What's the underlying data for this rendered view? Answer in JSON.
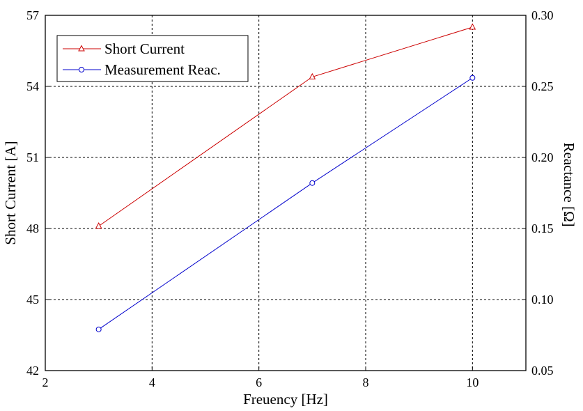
{
  "chart_data": {
    "type": "line",
    "x_axis": {
      "label": "Freuency [Hz]",
      "range": [
        2,
        11
      ],
      "ticks": [
        2,
        4,
        6,
        8,
        10
      ],
      "tick_labels": [
        "2",
        "4",
        "6",
        "8",
        "10"
      ]
    },
    "y_axis_left": {
      "label": "Short Current [A]",
      "range": [
        42,
        57
      ],
      "ticks": [
        42,
        45,
        48,
        51,
        54,
        57
      ],
      "tick_labels": [
        "42",
        "45",
        "48",
        "51",
        "54",
        "57"
      ]
    },
    "y_axis_right": {
      "label": "Reactance [Ω]",
      "range": [
        0.05,
        0.3
      ],
      "ticks": [
        0.05,
        0.1,
        0.15,
        0.2,
        0.25,
        0.3
      ],
      "tick_labels": [
        "0.05",
        "0.10",
        "0.15",
        "0.20",
        "0.25",
        "0.30"
      ]
    },
    "grid": true,
    "legend_position": "top-left",
    "series": [
      {
        "name": "Short Current",
        "axis": "left",
        "color": "#cc0000",
        "marker": "triangle",
        "x": [
          3,
          7,
          10
        ],
        "y": [
          48.1,
          54.4,
          56.5
        ]
      },
      {
        "name": "Measurement Reac.",
        "axis": "right",
        "color": "#0000cc",
        "marker": "circle",
        "x": [
          3,
          7,
          10
        ],
        "y": [
          0.079,
          0.182,
          0.256
        ]
      }
    ]
  }
}
